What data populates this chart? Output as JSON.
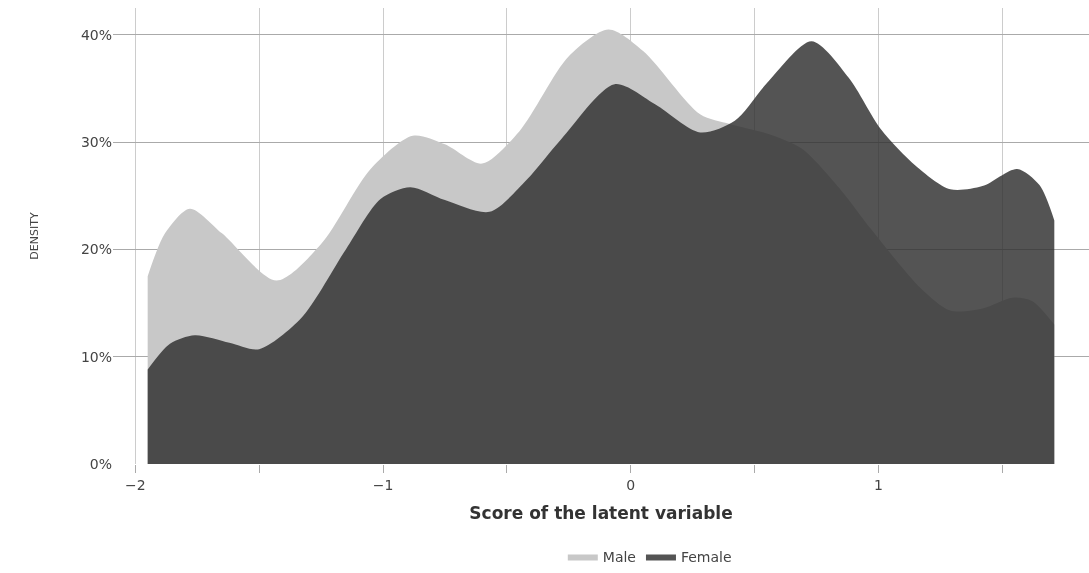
{
  "chart_data": {
    "type": "area",
    "xlabel": "Score of the latent variable",
    "ylabel": "DENSITY",
    "xlim": [
      -2.09,
      1.85
    ],
    "ylim": [
      0,
      42.5
    ],
    "xticks": [
      {
        "value": -2,
        "label": "−2"
      },
      {
        "value": -1.5,
        "label": null
      },
      {
        "value": -1,
        "label": "−1"
      },
      {
        "value": -0.5,
        "label": null
      },
      0,
      {
        "value": 0.5,
        "label": null
      },
      1,
      {
        "value": 1.5,
        "label": null
      }
    ],
    "yticks": [
      {
        "value": 0,
        "label": "0%"
      },
      {
        "value": 10,
        "label": "10%"
      },
      {
        "value": 20,
        "label": "20%"
      },
      {
        "value": 30,
        "label": "30%"
      },
      {
        "value": 40,
        "label": "40%"
      }
    ],
    "grid": true,
    "legend": "bottom",
    "series": [
      {
        "name": "Male",
        "color": "#c8c8c8",
        "x": [
          -1.95,
          -1.88,
          -1.78,
          -1.65,
          -1.43,
          -1.25,
          -1.05,
          -0.88,
          -0.75,
          -0.6,
          -0.45,
          -0.25,
          -0.09,
          0.05,
          0.28,
          0.4,
          0.55,
          0.69,
          0.85,
          0.97,
          1.17,
          1.29,
          1.42,
          1.54,
          1.62,
          1.71
        ],
        "values": [
          17.5,
          21.5,
          23.8,
          21.5,
          17.1,
          20.5,
          27.5,
          30.6,
          29.8,
          28.0,
          31.0,
          38.0,
          40.5,
          38.5,
          32.6,
          31.7,
          30.8,
          29.4,
          25.5,
          21.9,
          16.4,
          14.3,
          14.5,
          15.5,
          15.2,
          13.0
        ]
      },
      {
        "name": "Female",
        "color": "#2e2e2e",
        "x": [
          -1.95,
          -1.86,
          -1.76,
          -1.62,
          -1.5,
          -1.33,
          -1.15,
          -1.01,
          -0.89,
          -0.75,
          -0.57,
          -0.42,
          -0.28,
          -0.065,
          0.1,
          0.28,
          0.42,
          0.55,
          0.73,
          0.88,
          1.01,
          1.15,
          1.29,
          1.42,
          1.56,
          1.65,
          1.71
        ],
        "values": [
          8.8,
          11.2,
          12.0,
          11.3,
          10.7,
          13.6,
          20.0,
          24.7,
          25.8,
          24.6,
          23.5,
          26.5,
          30.3,
          35.4,
          33.5,
          30.9,
          32.0,
          35.5,
          39.4,
          36.0,
          31.2,
          27.8,
          25.6,
          25.9,
          27.5,
          26.0,
          22.7
        ]
      }
    ]
  }
}
